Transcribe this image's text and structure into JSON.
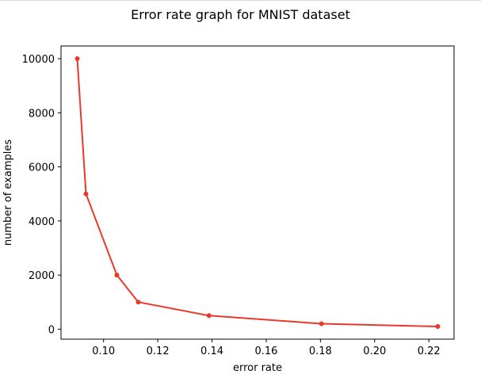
{
  "chart_data": {
    "type": "line",
    "title": "Error rate graph for MNIST dataset",
    "xlabel": "error rate",
    "ylabel": "number of examples",
    "xlim": [
      0.0843,
      0.2293
    ],
    "ylim": [
      -370,
      10470
    ],
    "xticks": [
      0.1,
      0.12,
      0.14,
      0.16,
      0.18,
      0.2,
      0.22
    ],
    "xtick_labels": [
      "0.10",
      "0.12",
      "0.14",
      "0.16",
      "0.18",
      "0.20",
      "0.22"
    ],
    "yticks": [
      0,
      2000,
      4000,
      6000,
      8000,
      10000
    ],
    "ytick_labels": [
      "0",
      "2000",
      "4000",
      "6000",
      "8000",
      "10000"
    ],
    "grid": false,
    "series": [
      {
        "x": [
          0.0903,
          0.0935,
          0.1049,
          0.1128,
          0.1389,
          0.1804,
          0.2233
        ],
        "y": [
          10000,
          5000,
          2000,
          1000,
          500,
          200,
          100
        ],
        "color": "#e8392a",
        "marker": "point"
      }
    ]
  }
}
